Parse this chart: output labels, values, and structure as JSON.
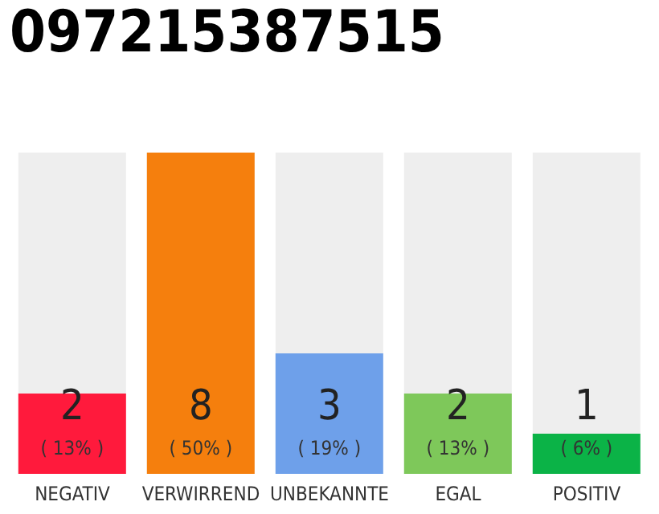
{
  "chart_data": {
    "type": "bar",
    "title": "097215387515",
    "categories": [
      "NEGATIV",
      "VERWIRREND",
      "UNBEKANNTE",
      "EGAL",
      "POSITIV"
    ],
    "values": [
      2,
      8,
      3,
      2,
      1
    ],
    "colors": [
      "#ff1a3c",
      "#f57f0d",
      "#6ea0ea",
      "#7ec85a",
      "#0bb347"
    ],
    "value_labels": [
      "2\n( 13% )",
      "8\n( 50% )",
      "3\n( 19% )",
      "2\n( 13% )",
      "1\n( 6% )"
    ],
    "grid": false,
    "legend": false
  }
}
